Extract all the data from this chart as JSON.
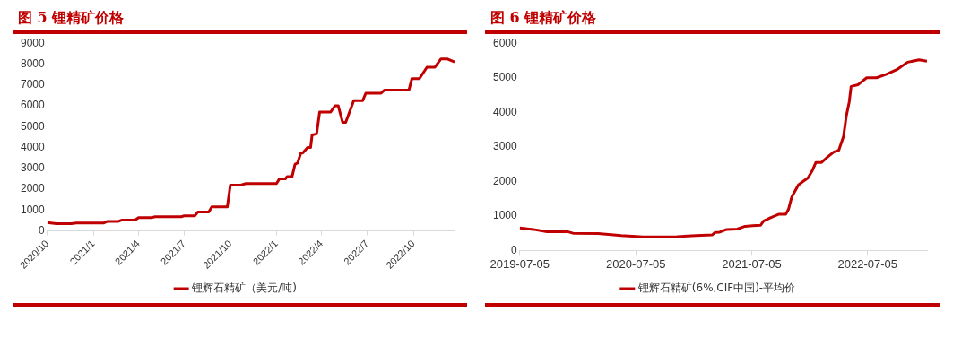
{
  "chart_data": [
    {
      "type": "line",
      "title": "图 5 锂精矿价格",
      "xlim": [
        "2020-10-01",
        "2022-12-22"
      ],
      "ylim": [
        0,
        9000
      ],
      "yticks": [
        0,
        1000,
        2000,
        3000,
        4000,
        5000,
        6000,
        7000,
        8000,
        9000
      ],
      "xticks": [
        {
          "value": "2020-10-01",
          "label": "2020/10"
        },
        {
          "value": "2021-01-01",
          "label": "2021/1"
        },
        {
          "value": "2021-04-01",
          "label": "2021/4"
        },
        {
          "value": "2021-07-01",
          "label": "2021/7"
        },
        {
          "value": "2021-10-01",
          "label": "2021/10"
        },
        {
          "value": "2022-01-01",
          "label": "2022/1"
        },
        {
          "value": "2022-04-01",
          "label": "2022/4"
        },
        {
          "value": "2022-07-01",
          "label": "2022/7"
        },
        {
          "value": "2022-10-01",
          "label": "2022/10"
        }
      ],
      "grid": false,
      "legend": "bottom",
      "marker": "none",
      "x": [
        "2020-10-01",
        "2020-10-19",
        "2020-11-18",
        "2020-11-28",
        "2021-01-22",
        "2021-01-28",
        "2021-02-19",
        "2021-02-27",
        "2021-03-25",
        "2021-04-01",
        "2021-04-28",
        "2021-05-04",
        "2021-06-25",
        "2021-07-01",
        "2021-07-22",
        "2021-07-28",
        "2021-08-19",
        "2021-08-25",
        "2021-09-25",
        "2021-10-01",
        "2021-10-22",
        "2021-11-01",
        "2022-01-01",
        "2022-01-07",
        "2022-01-19",
        "2022-01-22",
        "2022-02-01",
        "2022-02-07",
        "2022-02-12",
        "2022-02-18",
        "2022-02-23",
        "2022-03-04",
        "2022-03-10",
        "2022-03-13",
        "2022-03-22",
        "2022-03-28",
        "2022-04-19",
        "2022-04-28",
        "2022-05-04",
        "2022-05-13",
        "2022-05-19",
        "2022-06-04",
        "2022-06-22",
        "2022-06-28",
        "2022-07-28",
        "2022-08-04",
        "2022-09-22",
        "2022-09-28",
        "2022-10-13",
        "2022-10-28",
        "2022-11-13",
        "2022-11-25",
        "2022-12-07",
        "2022-12-22"
      ],
      "series": [
        {
          "name": "锂辉石精矿（美元/吨)",
          "color": "#c00000",
          "values": [
            400,
            350,
            350,
            380,
            380,
            450,
            450,
            520,
            520,
            640,
            640,
            680,
            680,
            720,
            720,
            900,
            900,
            1150,
            1150,
            2200,
            2200,
            2270,
            2270,
            2500,
            2500,
            2600,
            2600,
            3200,
            3250,
            3700,
            3750,
            4000,
            4000,
            4600,
            4650,
            5700,
            5700,
            6000,
            6000,
            5200,
            5200,
            6250,
            6250,
            6600,
            6600,
            6750,
            6750,
            7300,
            7300,
            7850,
            7850,
            8250,
            8250,
            8100
          ]
        }
      ]
    },
    {
      "type": "line",
      "title": "图 6 锂精矿价格",
      "xlim": [
        "2019-07-05",
        "2023-01-08"
      ],
      "ylim": [
        0,
        6000
      ],
      "yticks": [
        0,
        1000,
        2000,
        3000,
        4000,
        5000,
        6000
      ],
      "xticks": [
        "2019-07-05",
        "2020-07-05",
        "2021-07-05",
        "2022-07-05"
      ],
      "grid": false,
      "legend": "bottom",
      "marker": "none",
      "x": [
        "2019-07-05",
        "2019-08-17",
        "2019-09-29",
        "2019-12-05",
        "2019-12-20",
        "2020-03-08",
        "2020-05-20",
        "2020-07-29",
        "2020-11-11",
        "2021-01-11",
        "2021-03-02",
        "2021-03-11",
        "2021-03-26",
        "2021-04-17",
        "2021-05-20",
        "2021-06-14",
        "2021-07-08",
        "2021-08-02",
        "2021-08-11",
        "2021-09-02",
        "2021-09-29",
        "2021-10-20",
        "2021-10-29",
        "2021-11-08",
        "2021-11-29",
        "2021-12-14",
        "2021-12-29",
        "2022-01-11",
        "2022-01-23",
        "2022-02-10",
        "2022-02-28",
        "2022-03-20",
        "2022-04-05",
        "2022-04-20",
        "2022-04-29",
        "2022-05-08",
        "2022-05-14",
        "2022-06-05",
        "2022-07-02",
        "2022-08-02",
        "2022-09-02",
        "2022-10-08",
        "2022-11-08",
        "2022-12-14",
        "2023-01-08"
      ],
      "series": [
        {
          "name": "锂辉石精矿(6%,CIF中国)-平均价",
          "color": "#c00000",
          "values": [
            650,
            610,
            540,
            540,
            500,
            490,
            430,
            390,
            400,
            430,
            450,
            520,
            530,
            610,
            620,
            700,
            720,
            730,
            850,
            950,
            1050,
            1050,
            1200,
            1550,
            1900,
            2000,
            2100,
            2300,
            2550,
            2550,
            2700,
            2850,
            2900,
            3300,
            3900,
            4300,
            4750,
            4800,
            5000,
            5000,
            5100,
            5250,
            5450,
            5520,
            5480
          ]
        }
      ]
    }
  ]
}
